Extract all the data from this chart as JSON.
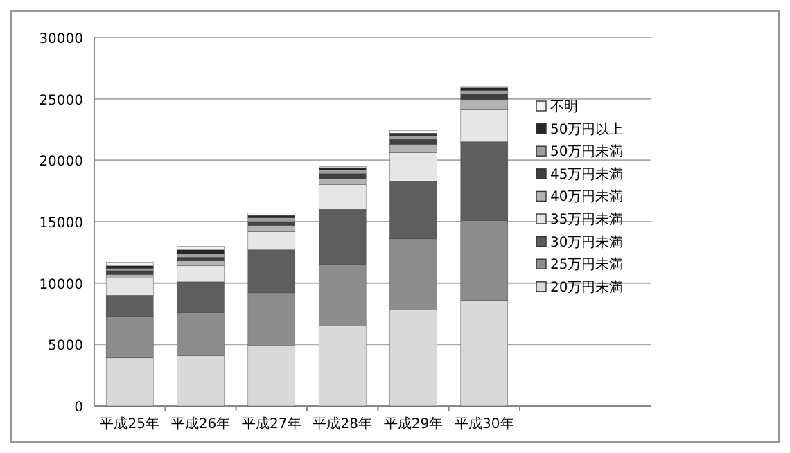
{
  "chart_data": {
    "type": "bar",
    "stacked": true,
    "categories": [
      "平成25年",
      "平成26年",
      "平成27年",
      "平成28年",
      "平成29年",
      "平成30年"
    ],
    "series": [
      {
        "name": "20万円未満",
        "color": "#d9d9d9",
        "values": [
          3900,
          4100,
          4900,
          6500,
          7800,
          8600
        ]
      },
      {
        "name": "25万円未満",
        "color": "#8c8c8c",
        "values": [
          3400,
          3500,
          4300,
          5000,
          5800,
          6500
        ]
      },
      {
        "name": "30万円未満",
        "color": "#5e5e5e",
        "values": [
          1700,
          2500,
          3500,
          4500,
          4700,
          6400
        ]
      },
      {
        "name": "35万円未満",
        "color": "#e6e6e6",
        "values": [
          1400,
          1300,
          1500,
          2000,
          2300,
          2600
        ]
      },
      {
        "name": "40万円未満",
        "color": "#b3b3b3",
        "values": [
          300,
          400,
          500,
          500,
          700,
          800
        ]
      },
      {
        "name": "45万円未満",
        "color": "#404040",
        "values": [
          300,
          300,
          300,
          400,
          400,
          500
        ]
      },
      {
        "name": "50万円未満",
        "color": "#9e9e9e",
        "values": [
          200,
          300,
          300,
          300,
          300,
          300
        ]
      },
      {
        "name": "50万円以上",
        "color": "#262626",
        "values": [
          200,
          300,
          200,
          200,
          200,
          200
        ]
      },
      {
        "name": "不明",
        "color": "#f5f5f5",
        "values": [
          300,
          300,
          200,
          100,
          200,
          100
        ]
      }
    ],
    "ylim": [
      0,
      30000
    ],
    "yticks": [
      0,
      5000,
      10000,
      15000,
      20000,
      25000,
      30000
    ],
    "grid": "y",
    "legend": "right"
  }
}
